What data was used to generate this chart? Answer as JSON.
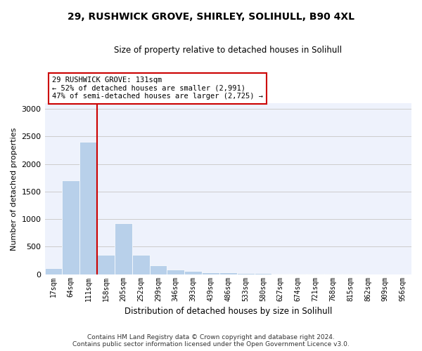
{
  "title1": "29, RUSHWICK GROVE, SHIRLEY, SOLIHULL, B90 4XL",
  "title2": "Size of property relative to detached houses in Solihull",
  "xlabel": "Distribution of detached houses by size in Solihull",
  "ylabel": "Number of detached properties",
  "bar_color": "#b8d0ea",
  "categories": [
    "17sqm",
    "64sqm",
    "111sqm",
    "158sqm",
    "205sqm",
    "252sqm",
    "299sqm",
    "346sqm",
    "393sqm",
    "439sqm",
    "486sqm",
    "533sqm",
    "580sqm",
    "627sqm",
    "674sqm",
    "721sqm",
    "768sqm",
    "815sqm",
    "862sqm",
    "909sqm",
    "956sqm"
  ],
  "values": [
    110,
    1700,
    2400,
    350,
    920,
    350,
    160,
    80,
    55,
    35,
    28,
    22,
    18,
    5,
    4,
    3,
    2,
    2,
    1,
    1,
    1
  ],
  "ylim": [
    0,
    3100
  ],
  "yticks": [
    0,
    500,
    1000,
    1500,
    2000,
    2500,
    3000
  ],
  "property_line_x": 2.5,
  "annotation_text": "29 RUSHWICK GROVE: 131sqm\n← 52% of detached houses are smaller (2,991)\n47% of semi-detached houses are larger (2,725) →",
  "annotation_box_color": "#ffffff",
  "annotation_box_edge": "#cc0000",
  "red_line_color": "#cc0000",
  "footer1": "Contains HM Land Registry data © Crown copyright and database right 2024.",
  "footer2": "Contains public sector information licensed under the Open Government Licence v3.0.",
  "background_color": "#eef2fc",
  "grid_color": "#cccccc"
}
